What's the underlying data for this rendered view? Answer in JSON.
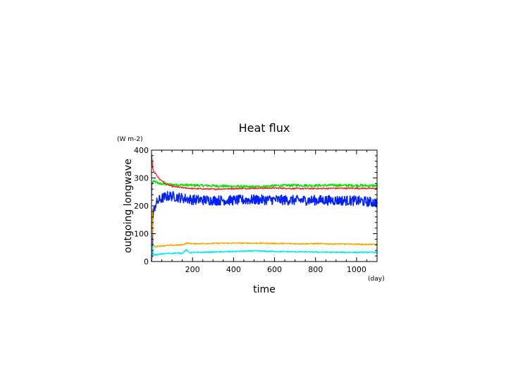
{
  "chart_data": {
    "type": "line",
    "title": "Heat flux",
    "xlabel": "time",
    "ylabel": "outgoing longwave",
    "x_unit": "(day)",
    "y_unit": "(W m-2)",
    "xlim": [
      0,
      1100
    ],
    "ylim": [
      0,
      400
    ],
    "x_ticks": [
      200,
      400,
      600,
      800,
      1000
    ],
    "y_ticks": [
      0,
      100,
      200,
      300,
      400
    ],
    "x_minor_step": 50,
    "y_minor_step": 20,
    "grid": false,
    "series": [
      {
        "color": "#00e000",
        "x": [
          0,
          2,
          5,
          10,
          20,
          40,
          60,
          80,
          100,
          150,
          200,
          300,
          400,
          500,
          600,
          700,
          800,
          900,
          1000,
          1100
        ],
        "values": [
          230,
          275,
          285,
          288,
          285,
          280,
          278,
          277,
          276,
          275,
          274,
          272,
          270,
          268,
          272,
          274,
          273,
          274,
          273,
          272
        ],
        "noise": 5
      },
      {
        "color": "#ff2020",
        "x": [
          0,
          2,
          5,
          10,
          20,
          40,
          60,
          80,
          100,
          150,
          200,
          300,
          400,
          500,
          600,
          700,
          800,
          900,
          1000,
          1100
        ],
        "values": [
          385,
          370,
          340,
          322,
          315,
          295,
          285,
          275,
          270,
          265,
          262,
          260,
          262,
          263,
          264,
          262,
          262,
          263,
          263,
          262
        ],
        "noise": 2.5
      },
      {
        "color": "#0020ff",
        "x": [
          0,
          3,
          6,
          10,
          15,
          20,
          30,
          40,
          60,
          80,
          100,
          150,
          200,
          300,
          400,
          500,
          600,
          700,
          800,
          900,
          1000,
          1100
        ],
        "values": [
          0,
          30,
          150,
          175,
          195,
          205,
          215,
          222,
          230,
          235,
          235,
          228,
          222,
          220,
          220,
          222,
          222,
          220,
          220,
          220,
          218,
          212
        ],
        "noise": 18
      },
      {
        "color": "#f0a800",
        "x": [
          0,
          3,
          8,
          15,
          30,
          60,
          100,
          150,
          170,
          200,
          300,
          400,
          500,
          600,
          700,
          800,
          900,
          1000,
          1100
        ],
        "values": [
          0,
          220,
          60,
          52,
          55,
          57,
          58,
          60,
          66,
          64,
          65,
          66,
          66,
          65,
          64,
          64,
          63,
          62,
          61
        ],
        "noise": 2.5
      },
      {
        "color": "#00e8f0",
        "x": [
          0,
          3,
          8,
          15,
          30,
          60,
          100,
          150,
          170,
          180,
          200,
          300,
          400,
          500,
          600,
          700,
          800,
          900,
          1000,
          1100
        ],
        "values": [
          0,
          60,
          28,
          24,
          25,
          28,
          30,
          30,
          42,
          33,
          32,
          34,
          36,
          38,
          36,
          35,
          34,
          33,
          33,
          33
        ],
        "noise": 2.5
      }
    ]
  }
}
